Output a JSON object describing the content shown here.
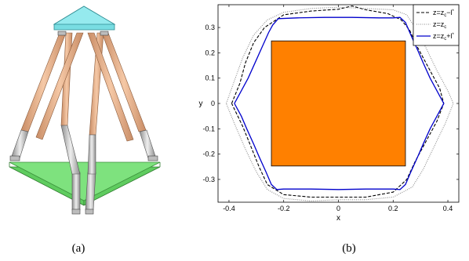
{
  "captions": {
    "left": "(a)",
    "right": "(b)"
  },
  "colors": {
    "top_plate": "#6fd6dc",
    "base_plate": "#6edc6e",
    "leg_upper": "#e9b48f",
    "leg_lower": "#c9c9c9",
    "square_fill": "#ff8000",
    "curve_lower": "#000000",
    "curve_center": "#8c8c8c",
    "curve_upper": "#0000cc"
  },
  "chart_data": {
    "type": "line",
    "title": "",
    "xlabel": "x",
    "ylabel": "y",
    "xlim": [
      -0.44,
      0.44
    ],
    "ylim": [
      -0.39,
      0.39
    ],
    "xticks": [
      "-0.4",
      "-0.2",
      "0",
      "0.2",
      "0.4"
    ],
    "yticks": [
      "0.3",
      "0.2",
      "0.1",
      "0",
      "-0.1",
      "-0.2",
      "-0.3"
    ],
    "xtick_values": [
      -0.4,
      -0.2,
      0,
      0.2,
      0.4
    ],
    "ytick_values": [
      0.3,
      0.2,
      0.1,
      0,
      -0.1,
      -0.2,
      -0.3
    ],
    "legend_position": "top-right",
    "legend": [
      {
        "base": "z=z",
        "sub": "c",
        "suffix": "−l",
        "sup": "*",
        "style": "dashed",
        "color": "#000000"
      },
      {
        "base": "z=z",
        "sub": "c",
        "suffix": "",
        "sup": "",
        "style": "dotted",
        "color": "#8c8c8c"
      },
      {
        "base": "z=z",
        "sub": "c",
        "suffix": "+l",
        "sup": "*",
        "style": "solid",
        "color": "#0000cc"
      }
    ],
    "rectangle": {
      "x": [
        -0.245,
        0.245
      ],
      "y": [
        -0.247,
        0.247
      ],
      "fill": "#ff8000"
    },
    "series": [
      {
        "style": "dashed",
        "color": "#000000",
        "points": [
          [
            -0.39,
            0.0
          ],
          [
            -0.36,
            0.08
          ],
          [
            -0.34,
            0.16
          ],
          [
            -0.31,
            0.24
          ],
          [
            -0.27,
            0.3
          ],
          [
            -0.2,
            0.35
          ],
          [
            -0.1,
            0.365
          ],
          [
            0.0,
            0.372
          ],
          [
            0.05,
            0.385
          ],
          [
            0.1,
            0.37
          ],
          [
            0.18,
            0.355
          ],
          [
            0.23,
            0.33
          ],
          [
            0.26,
            0.29
          ],
          [
            0.29,
            0.22
          ],
          [
            0.33,
            0.14
          ],
          [
            0.37,
            0.06
          ],
          [
            0.385,
            0.0
          ],
          [
            0.36,
            -0.07
          ],
          [
            0.32,
            -0.15
          ],
          [
            0.28,
            -0.23
          ],
          [
            0.25,
            -0.3
          ],
          [
            0.2,
            -0.35
          ],
          [
            0.1,
            -0.37
          ],
          [
            0.0,
            -0.37
          ],
          [
            -0.1,
            -0.37
          ],
          [
            -0.2,
            -0.36
          ],
          [
            -0.26,
            -0.32
          ],
          [
            -0.29,
            -0.25
          ],
          [
            -0.32,
            -0.17
          ],
          [
            -0.35,
            -0.09
          ],
          [
            -0.39,
            0.0
          ]
        ]
      },
      {
        "style": "dotted",
        "color": "#8c8c8c",
        "points": [
          [
            -0.41,
            0.0
          ],
          [
            -0.38,
            0.09
          ],
          [
            -0.35,
            0.18
          ],
          [
            -0.31,
            0.27
          ],
          [
            -0.26,
            0.33
          ],
          [
            -0.2,
            0.36
          ],
          [
            -0.1,
            0.375
          ],
          [
            0.0,
            0.38
          ],
          [
            0.1,
            0.375
          ],
          [
            0.2,
            0.37
          ],
          [
            0.25,
            0.35
          ],
          [
            0.28,
            0.3
          ],
          [
            0.32,
            0.22
          ],
          [
            0.36,
            0.13
          ],
          [
            0.4,
            0.05
          ],
          [
            0.42,
            0.0
          ],
          [
            0.39,
            -0.08
          ],
          [
            0.35,
            -0.17
          ],
          [
            0.31,
            -0.26
          ],
          [
            0.27,
            -0.33
          ],
          [
            0.2,
            -0.37
          ],
          [
            0.1,
            -0.38
          ],
          [
            0.0,
            -0.38
          ],
          [
            -0.1,
            -0.385
          ],
          [
            -0.2,
            -0.375
          ],
          [
            -0.26,
            -0.34
          ],
          [
            -0.3,
            -0.27
          ],
          [
            -0.34,
            -0.18
          ],
          [
            -0.38,
            -0.08
          ],
          [
            -0.41,
            0.0
          ]
        ]
      },
      {
        "style": "solid",
        "color": "#0000cc",
        "points": [
          [
            -0.38,
            0.0
          ],
          [
            -0.355,
            0.05
          ],
          [
            -0.33,
            0.1
          ],
          [
            -0.305,
            0.16
          ],
          [
            -0.28,
            0.22
          ],
          [
            -0.255,
            0.28
          ],
          [
            -0.24,
            0.31
          ],
          [
            -0.22,
            0.335
          ],
          [
            -0.15,
            0.338
          ],
          [
            -0.05,
            0.34
          ],
          [
            0.05,
            0.34
          ],
          [
            0.15,
            0.338
          ],
          [
            0.2,
            0.338
          ],
          [
            0.225,
            0.34
          ],
          [
            0.245,
            0.32
          ],
          [
            0.265,
            0.27
          ],
          [
            0.29,
            0.21
          ],
          [
            0.31,
            0.16
          ],
          [
            0.335,
            0.1
          ],
          [
            0.36,
            0.05
          ],
          [
            0.385,
            0.0
          ],
          [
            0.36,
            -0.05
          ],
          [
            0.335,
            -0.1
          ],
          [
            0.31,
            -0.16
          ],
          [
            0.29,
            -0.21
          ],
          [
            0.265,
            -0.27
          ],
          [
            0.245,
            -0.32
          ],
          [
            0.225,
            -0.34
          ],
          [
            0.2,
            -0.338
          ],
          [
            0.1,
            -0.338
          ],
          [
            0.0,
            -0.34
          ],
          [
            -0.1,
            -0.338
          ],
          [
            -0.2,
            -0.338
          ],
          [
            -0.225,
            -0.34
          ],
          [
            -0.245,
            -0.32
          ],
          [
            -0.265,
            -0.27
          ],
          [
            -0.29,
            -0.21
          ],
          [
            -0.31,
            -0.16
          ],
          [
            -0.335,
            -0.1
          ],
          [
            -0.355,
            -0.05
          ],
          [
            -0.38,
            0.0
          ]
        ]
      }
    ]
  }
}
